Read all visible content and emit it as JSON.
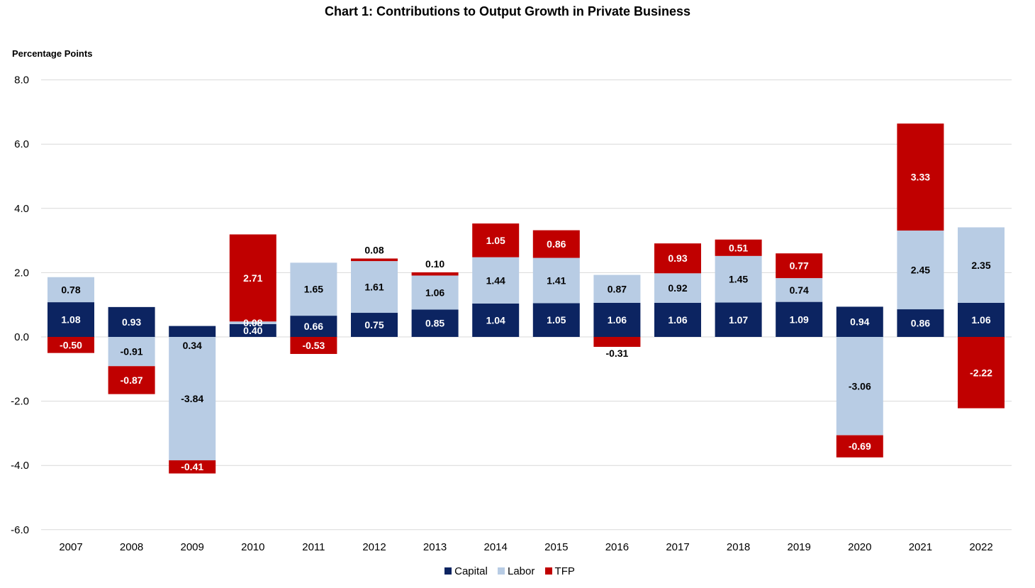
{
  "chart_data": {
    "type": "bar",
    "stacked": true,
    "title": "Chart 1: Contributions to Output Growth in Private Business",
    "ylabel": "Percentage Points",
    "xlabel": "",
    "ylim": [
      -6.0,
      8.0
    ],
    "yticks": [
      "8.0",
      "6.0",
      "4.0",
      "2.0",
      "0.0",
      "-2.0",
      "-4.0",
      "-6.0"
    ],
    "ytick_values": [
      8,
      6,
      4,
      2,
      0,
      -2,
      -4,
      -6
    ],
    "grid": true,
    "legend_position": "bottom-center",
    "categories": [
      "2007",
      "2008",
      "2009",
      "2010",
      "2011",
      "2012",
      "2013",
      "2014",
      "2015",
      "2016",
      "2017",
      "2018",
      "2019",
      "2020",
      "2021",
      "2022"
    ],
    "series": [
      {
        "name": "Capital",
        "color": "#0c2461",
        "values": [
          1.08,
          0.93,
          0.34,
          0.4,
          0.66,
          0.75,
          0.85,
          1.04,
          1.05,
          1.06,
          1.06,
          1.07,
          1.09,
          0.94,
          0.86,
          1.06
        ],
        "labels": [
          "1.08",
          "0.93",
          "0.34",
          "0.40",
          "0.66",
          "0.75",
          "0.85",
          "1.04",
          "1.05",
          "1.06",
          "1.06",
          "1.07",
          "1.09",
          "0.94",
          "0.86",
          "1.06"
        ]
      },
      {
        "name": "Labor",
        "color": "#b8cce4",
        "values": [
          0.78,
          -0.91,
          -3.84,
          0.08,
          1.65,
          1.61,
          1.06,
          1.44,
          1.41,
          0.87,
          0.92,
          1.45,
          0.74,
          -3.06,
          2.45,
          2.35
        ],
        "labels": [
          "0.78",
          "-0.91",
          "-3.84",
          "0.08",
          "1.65",
          "1.61",
          "1.06",
          "1.44",
          "1.41",
          "0.87",
          "0.92",
          "1.45",
          "0.74",
          "-3.06",
          "2.45",
          "2.35"
        ]
      },
      {
        "name": "TFP",
        "color": "#c00000",
        "values": [
          -0.5,
          -0.87,
          -0.41,
          2.71,
          -0.53,
          0.08,
          0.1,
          1.05,
          0.86,
          -0.31,
          0.93,
          0.51,
          0.77,
          -0.69,
          3.33,
          -2.22
        ],
        "labels": [
          "-0.50",
          "-0.87",
          "-0.41",
          "2.71",
          "-0.53",
          "0.08",
          "0.10",
          "1.05",
          "0.86",
          "-0.31",
          "0.93",
          "0.51",
          "0.77",
          "-0.69",
          "3.33",
          "-2.22"
        ]
      }
    ]
  }
}
